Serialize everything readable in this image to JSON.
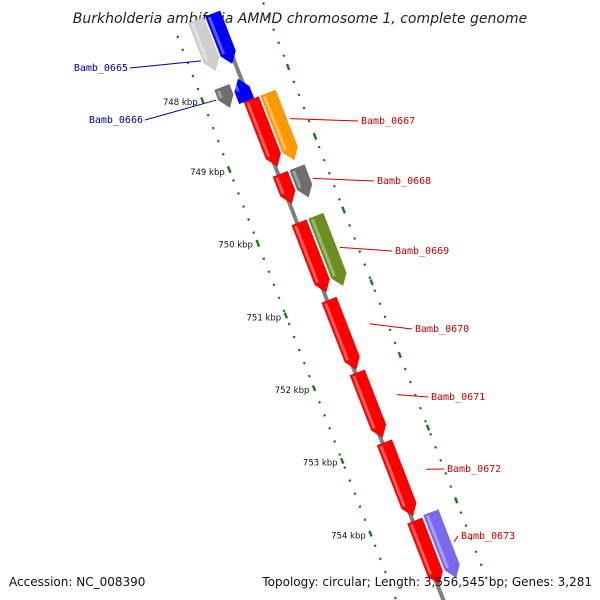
{
  "title": "Burkholderia ambifaria AMMD chromosome 1, complete genome",
  "footer": {
    "accession": "Accession: NC_008390",
    "summary": "Topology: circular; Length: 3,556,545 bp; Genes: 3,281"
  },
  "ticks": [
    "748 kbp",
    "749 kbp",
    "750 kbp",
    "751 kbp",
    "752 kbp",
    "753 kbp",
    "754 kbp"
  ],
  "colors": {
    "red": "#ff0000",
    "blue": "#0000ff",
    "orange": "#ff9900",
    "olive": "#6b8e23",
    "gray": "#6e6e6e",
    "lightgray": "#cfcfcf",
    "purple": "#7b68ee",
    "axis": "#808080",
    "tick": "#1a7a1a",
    "blueLabel": "#0000aa",
    "redLabel": "#cc0000"
  },
  "genes": [
    {
      "label": "Bamb_0665",
      "strand": "forward",
      "color": "lightgray",
      "labelColor": "blueLabel"
    },
    {
      "label": "Bamb_0665",
      "strand": "forward",
      "color": "blue",
      "labelColor": "blueLabel"
    },
    {
      "label": "Bamb_0666",
      "strand": "forward",
      "color": "gray",
      "labelColor": "blueLabel"
    },
    {
      "label": "Bamb_0666",
      "strand": "reverse",
      "color": "blue",
      "labelColor": "blueLabel"
    },
    {
      "label": "Bamb_0667",
      "strand": "forward",
      "color": "red",
      "labelColor": "redLabel"
    },
    {
      "label": "Bamb_0667",
      "strand": "forward",
      "color": "orange",
      "labelColor": "redLabel"
    },
    {
      "label": "Bamb_0668",
      "strand": "forward",
      "color": "red",
      "labelColor": "redLabel"
    },
    {
      "label": "Bamb_0668",
      "strand": "forward",
      "color": "gray",
      "labelColor": "redLabel"
    },
    {
      "label": "Bamb_0669",
      "strand": "forward",
      "color": "red",
      "labelColor": "redLabel"
    },
    {
      "label": "Bamb_0669",
      "strand": "forward",
      "color": "olive",
      "labelColor": "redLabel"
    },
    {
      "label": "Bamb_0670",
      "strand": "forward",
      "color": "red",
      "labelColor": "redLabel"
    },
    {
      "label": "Bamb_0671",
      "strand": "forward",
      "color": "red",
      "labelColor": "redLabel"
    },
    {
      "label": "Bamb_0672",
      "strand": "forward",
      "color": "red",
      "labelColor": "redLabel"
    },
    {
      "label": "Bamb_0673",
      "strand": "forward",
      "color": "red",
      "labelColor": "redLabel"
    },
    {
      "label": "Bamb_0673",
      "strand": "forward",
      "color": "purple",
      "labelColor": "redLabel"
    }
  ]
}
